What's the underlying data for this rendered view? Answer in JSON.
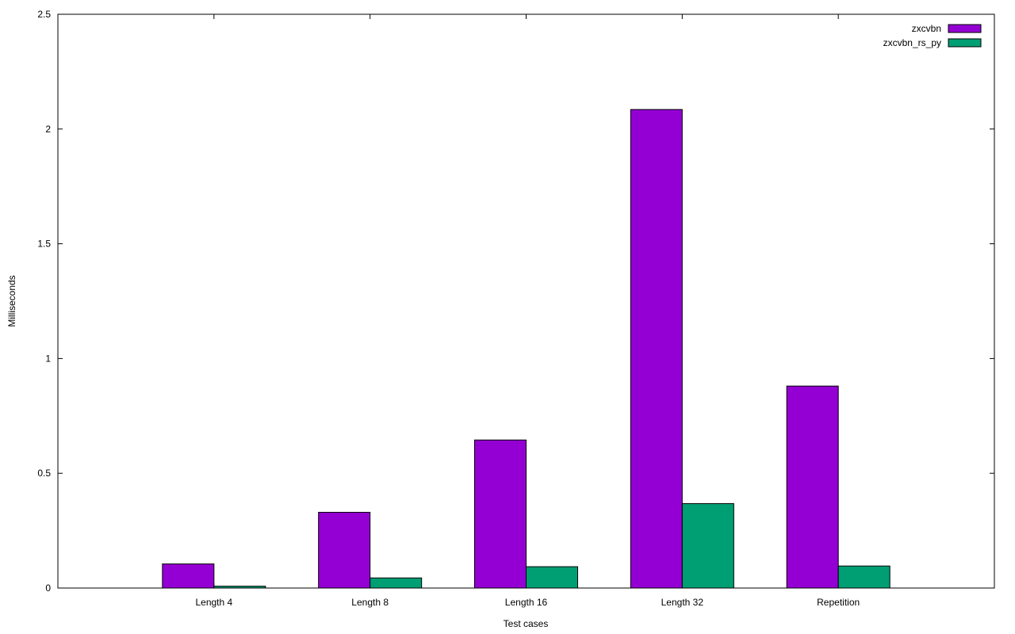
{
  "chart_data": {
    "type": "bar",
    "title": "",
    "xlabel": "Test cases",
    "ylabel": "Milliseconds",
    "categories": [
      "Length 4",
      "Length 8",
      "Length 16",
      "Length 32",
      "Repetition"
    ],
    "series": [
      {
        "name": "zxcvbn",
        "color": "#9400d3",
        "values": [
          0.105,
          0.33,
          0.645,
          2.085,
          0.88
        ]
      },
      {
        "name": "zxcvbn_rs_py",
        "color": "#009e73",
        "values": [
          0.008,
          0.044,
          0.093,
          0.368,
          0.096
        ]
      }
    ],
    "ylim": [
      0,
      2.5
    ],
    "yticks": [
      "0",
      "0.5",
      "1",
      "1.5",
      "2",
      "2.5"
    ],
    "legend_position": "top-right",
    "grid": false
  }
}
